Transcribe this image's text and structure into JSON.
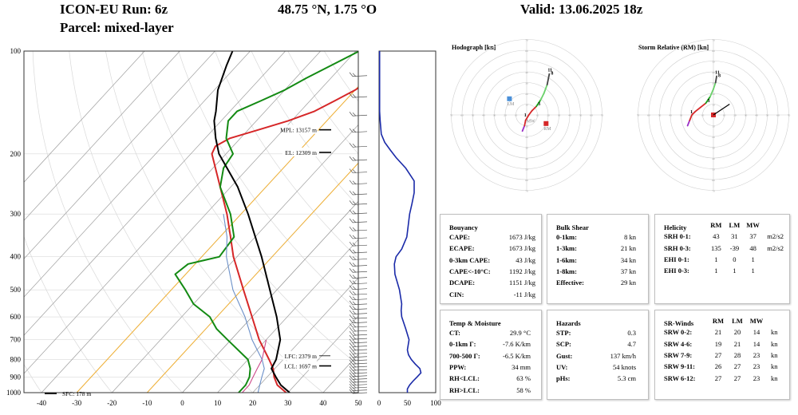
{
  "header": {
    "run": "ICON-EU Run: 6z",
    "coords": "48.75 °N, 1.75 °O",
    "valid": "Valid: 13.06.2025 18z",
    "parcel": "Parcel: mixed-layer"
  },
  "colors": {
    "temperature": "#d62728",
    "dewpoint": "#138a13",
    "parcel": "#000000",
    "virtual_temp": "#cc4a8a",
    "wetbulb": "#6a8fc8",
    "wind_profile": "#1a2aa8",
    "lm_marker": "#4a90d9",
    "rm_marker": "#d62728"
  },
  "chart_data": [
    {
      "type": "line",
      "name": "skewt",
      "xlim": [
        -45,
        50
      ],
      "x_ticks": [
        -40,
        -30,
        -20,
        -10,
        0,
        10,
        20,
        30,
        40,
        50
      ],
      "y_ticks": [
        100,
        200,
        300,
        400,
        500,
        600,
        700,
        800,
        900,
        1000
      ],
      "yscale": "log",
      "ylim": [
        1000,
        100
      ],
      "series": [
        {
          "key": "temperature",
          "points": [
            [
              1000,
              29.5
            ],
            [
              950,
              25
            ],
            [
              900,
              22
            ],
            [
              850,
              19.5
            ],
            [
              800,
              16
            ],
            [
              700,
              8
            ],
            [
              600,
              0
            ],
            [
              500,
              -9.5
            ],
            [
              400,
              -21
            ],
            [
              350,
              -27
            ],
            [
              300,
              -34
            ],
            [
              250,
              -43
            ],
            [
              200,
              -54
            ],
            [
              190,
              -55
            ],
            [
              180,
              -53
            ],
            [
              170,
              -47
            ],
            [
              160,
              -41
            ],
            [
              150,
              -36
            ],
            [
              140,
              -33
            ],
            [
              130,
              -30
            ],
            [
              120,
              -28
            ],
            [
              110,
              -27
            ],
            [
              100,
              -26
            ]
          ]
        },
        {
          "key": "dewpoint",
          "points": [
            [
              1000,
              16
            ],
            [
              950,
              16
            ],
            [
              900,
              15
            ],
            [
              850,
              13
            ],
            [
              800,
              10
            ],
            [
              700,
              -1
            ],
            [
              650,
              -7
            ],
            [
              600,
              -12
            ],
            [
              550,
              -20
            ],
            [
              500,
              -26
            ],
            [
              450,
              -33
            ],
            [
              420,
              -32
            ],
            [
              400,
              -25
            ],
            [
              350,
              -26
            ],
            [
              300,
              -33
            ],
            [
              250,
              -43
            ],
            [
              220,
              -47
            ],
            [
              200,
              -48
            ],
            [
              180,
              -54
            ],
            [
              160,
              -58
            ],
            [
              150,
              -58
            ],
            [
              140,
              -54
            ],
            [
              130,
              -50
            ],
            [
              120,
              -47
            ],
            [
              100,
              -39
            ]
          ]
        },
        {
          "key": "parcel",
          "points": [
            [
              1000,
              30.5
            ],
            [
              950,
              26
            ],
            [
              900,
              22.5
            ],
            [
              850,
              19
            ],
            [
              800,
              18
            ],
            [
              700,
              14
            ],
            [
              600,
              7
            ],
            [
              500,
              -2
            ],
            [
              400,
              -13
            ],
            [
              300,
              -28
            ],
            [
              250,
              -38
            ],
            [
              200,
              -52
            ],
            [
              180,
              -57
            ],
            [
              160,
              -62
            ],
            [
              150,
              -64
            ],
            [
              130,
              -69
            ],
            [
              110,
              -73
            ],
            [
              100,
              -75
            ]
          ]
        },
        {
          "key": "virtual_temp",
          "points": [
            [
              1000,
              17
            ],
            [
              950,
              17
            ],
            [
              900,
              16
            ],
            [
              850,
              15
            ],
            [
              800,
              14
            ],
            [
              700,
              10
            ]
          ]
        },
        {
          "key": "wetbulb",
          "points": [
            [
              1000,
              21.5
            ],
            [
              950,
              20
            ],
            [
              900,
              18.5
            ],
            [
              850,
              17
            ],
            [
              800,
              14
            ],
            [
              700,
              6
            ],
            [
              600,
              -2
            ],
            [
              500,
              -12.5
            ],
            [
              400,
              -23
            ],
            [
              350,
              -28
            ],
            [
              300,
              -35
            ]
          ]
        }
      ],
      "labels": [
        {
          "text": "MPL: 13157 m",
          "p": 170
        },
        {
          "text": "EL: 12309 m",
          "p": 198
        },
        {
          "text": "LFC: 2379 m",
          "p": 780
        },
        {
          "text": "LCL: 1697 m",
          "p": 835
        },
        {
          "text": "SFC: 178 m",
          "p": 990
        }
      ]
    },
    {
      "type": "line",
      "name": "wind-speed-profile",
      "xlim": [
        0,
        100
      ],
      "x_ticks": [
        0,
        50,
        100
      ],
      "ylim": [
        1000,
        100
      ],
      "points": [
        [
          1000,
          50
        ],
        [
          975,
          50
        ],
        [
          950,
          54
        ],
        [
          925,
          60
        ],
        [
          900,
          67
        ],
        [
          875,
          74
        ],
        [
          850,
          72
        ],
        [
          825,
          64
        ],
        [
          800,
          57
        ],
        [
          775,
          52
        ],
        [
          750,
          50
        ],
        [
          700,
          53
        ],
        [
          650,
          47
        ],
        [
          600,
          40
        ],
        [
          575,
          39
        ],
        [
          550,
          40
        ],
        [
          500,
          36
        ],
        [
          450,
          28
        ],
        [
          420,
          27
        ],
        [
          400,
          30
        ],
        [
          380,
          40
        ],
        [
          350,
          49
        ],
        [
          300,
          54
        ],
        [
          280,
          58
        ],
        [
          260,
          62
        ],
        [
          240,
          62
        ],
        [
          220,
          47
        ],
        [
          205,
          30
        ],
        [
          195,
          20
        ],
        [
          185,
          10
        ],
        [
          175,
          4
        ],
        [
          160,
          2
        ],
        [
          150,
          1
        ],
        [
          140,
          1
        ],
        [
          120,
          1
        ],
        [
          100,
          1
        ]
      ]
    },
    {
      "type": "scatter",
      "name": "hodograph",
      "title": "Hodograph [kn]",
      "range_labels": [
        "70",
        "60",
        "50",
        "40",
        "30",
        "20",
        "10"
      ],
      "trace_u_v": [
        [
          -4,
          -15
        ],
        [
          -2,
          -10
        ],
        [
          -1,
          -5
        ],
        [
          2,
          0
        ],
        [
          5,
          4
        ],
        [
          9,
          8
        ],
        [
          13,
          14
        ],
        [
          16,
          20
        ],
        [
          19,
          28
        ],
        [
          21,
          38
        ]
      ],
      "height_labels": [
        "1",
        "3",
        "11",
        "8"
      ],
      "markers": [
        {
          "name": "LM",
          "text": "LM",
          "u": -16,
          "v": 15
        },
        {
          "name": "MW",
          "text": "MW",
          "u": 2,
          "v": -1
        },
        {
          "name": "RM",
          "text": "RM",
          "u": 18,
          "v": -8
        }
      ]
    },
    {
      "type": "scatter",
      "name": "storm-relative",
      "title": "Storm Relative (RM) [kn]",
      "range_labels": [
        "70",
        "60",
        "50",
        "40",
        "30",
        "20",
        "10"
      ],
      "trace_u_v": [
        [
          -24,
          -10
        ],
        [
          -22,
          -5
        ],
        [
          -20,
          0
        ],
        [
          -17,
          3
        ],
        [
          -12,
          7
        ],
        [
          -7,
          11
        ],
        [
          -3,
          17
        ],
        [
          0,
          24
        ],
        [
          2,
          30
        ],
        [
          3,
          36
        ]
      ],
      "height_labels": [
        "1",
        "3",
        "11",
        "8"
      ],
      "storm_vector": [
        15,
        10
      ]
    }
  ],
  "tables": {
    "bouyancy": {
      "title": "Bouyancy",
      "rows": [
        {
          "k": "CAPE:",
          "v": "1673 J/kg"
        },
        {
          "k": "ECAPE:",
          "v": "1673 J/kg"
        },
        {
          "k": "0-3km CAPE:",
          "v": "43 J/kg"
        },
        {
          "k": "CAPE<-10°C:",
          "v": "1192 J/kg"
        },
        {
          "k": "DCAPE:",
          "v": "1151 J/kg"
        },
        {
          "k": "CIN:",
          "v": "-11 J/kg"
        }
      ]
    },
    "bulk_shear": {
      "title": "Bulk Shear",
      "rows": [
        {
          "k": "0-1km:",
          "v": "8 kn"
        },
        {
          "k": "1-3km:",
          "v": "21 kn"
        },
        {
          "k": "1-6km:",
          "v": "34 kn"
        },
        {
          "k": "1-8km:",
          "v": "37 kn"
        },
        {
          "k": "Effective:",
          "v": "29 kn"
        }
      ]
    },
    "helicity": {
      "title": "Helicity",
      "cols": [
        "RM",
        "LM",
        "MW"
      ],
      "rows": [
        {
          "k": "SRH 0-1:",
          "c": [
            "43",
            "31",
            "37"
          ],
          "u": "m2/s2"
        },
        {
          "k": "SRH 0-3:",
          "c": [
            "135",
            "-39",
            "48"
          ],
          "u": "m2/s2"
        },
        {
          "k": "EHI 0-1:",
          "c": [
            "1",
            "0",
            "1"
          ],
          "u": ""
        },
        {
          "k": "EHI 0-3:",
          "c": [
            "1",
            "1",
            "1"
          ],
          "u": ""
        }
      ]
    },
    "temp_moisture": {
      "title": "Temp & Moisture",
      "rows": [
        {
          "k": "CT:",
          "v": "29.9 °C"
        },
        {
          "k": "0-1km Γ:",
          "v": "-7.6 K/km"
        },
        {
          "k": "700-500 Γ:",
          "v": "-6.5 K/km"
        },
        {
          "k": "PPW:",
          "v": "34 mm"
        },
        {
          "k": "RH<LCL:",
          "v": "63 %"
        },
        {
          "k": "RH>LCL:",
          "v": "58 %"
        }
      ]
    },
    "hazards": {
      "title": "Hazards",
      "rows": [
        {
          "k": "STP:",
          "v": "0.3"
        },
        {
          "k": "SCP:",
          "v": "4.7"
        },
        {
          "k": "Gust:",
          "v": "137 km/h"
        },
        {
          "k": "UV:",
          "v": "54 knots"
        },
        {
          "k": "pHs:",
          "v": "5.3 cm"
        }
      ]
    },
    "sr_winds": {
      "title": "SR-Winds",
      "cols": [
        "RM",
        "LM",
        "MW"
      ],
      "rows": [
        {
          "k": "SRW 0-2:",
          "c": [
            "21",
            "20",
            "14"
          ],
          "u": "kn"
        },
        {
          "k": "SRW 4-6:",
          "c": [
            "19",
            "21",
            "14"
          ],
          "u": "kn"
        },
        {
          "k": "SRW 7-9:",
          "c": [
            "27",
            "28",
            "23"
          ],
          "u": "kn"
        },
        {
          "k": "SRW 9-11:",
          "c": [
            "26",
            "27",
            "23"
          ],
          "u": "kn"
        },
        {
          "k": "SRW 6-12:",
          "c": [
            "27",
            "27",
            "23"
          ],
          "u": "kn"
        }
      ]
    }
  }
}
